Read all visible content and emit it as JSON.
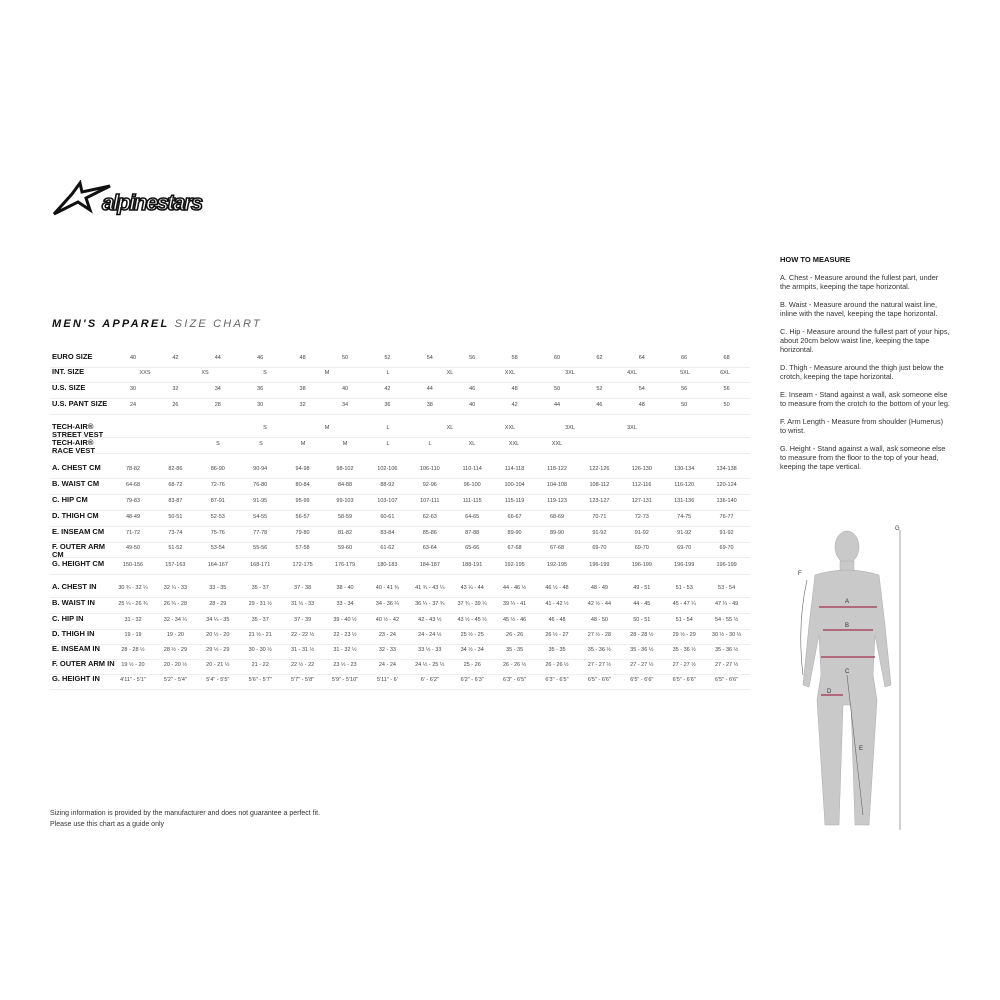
{
  "brand": "alpinestars",
  "title": {
    "bold": "MEN'S APPAREL",
    "light": "SIZE CHART"
  },
  "size_rows": [
    {
      "label": "EURO SIZE",
      "cells": [
        "40",
        "42",
        "44",
        "46",
        "48",
        "50",
        "52",
        "54",
        "56",
        "58",
        "60",
        "62",
        "64",
        "66",
        "68"
      ]
    },
    {
      "label": "INT. SIZE",
      "cells": [
        "XXS",
        "XS",
        "S",
        "M",
        "L",
        "XL",
        "XXL",
        "3XL",
        "4XL",
        "5XL",
        "6XL"
      ]
    },
    {
      "label": "U.S. SIZE",
      "cells": [
        "30",
        "32",
        "34",
        "36",
        "38",
        "40",
        "42",
        "44",
        "46",
        "48",
        "50",
        "52",
        "54",
        "56",
        "56"
      ]
    },
    {
      "label": "U.S. PANT SIZE",
      "cells": [
        "24",
        "26",
        "28",
        "30",
        "32",
        "34",
        "36",
        "38",
        "40",
        "42",
        "44",
        "46",
        "48",
        "50",
        "50"
      ]
    },
    {
      "label": "TECH-AIR® STREET VEST",
      "cells": [
        "S",
        "M",
        "L",
        "XL",
        "XXL",
        "3XL",
        "3XL"
      ]
    },
    {
      "label": "TECH-AIR® RACE VEST",
      "cells": [
        "S",
        "S",
        "M",
        "M",
        "L",
        "L",
        "XL",
        "XXL",
        "XXL"
      ]
    }
  ],
  "cm_rows": [
    {
      "label": "A. CHEST CM",
      "cells": [
        "78-82",
        "82-86",
        "86-90",
        "90-94",
        "94-98",
        "98-102",
        "102-106",
        "106-110",
        "110-114",
        "114-118",
        "118-122",
        "122-126",
        "126-130",
        "130-134",
        "134-138"
      ]
    },
    {
      "label": "B. WAIST CM",
      "cells": [
        "64-68",
        "68-72",
        "72-76",
        "76-80",
        "80-84",
        "84-88",
        "88-92",
        "92-96",
        "96-100",
        "100-104",
        "104-108",
        "108-112",
        "112-116",
        "116-120",
        "120-124"
      ]
    },
    {
      "label": "C. HIP CM",
      "cells": [
        "79-83",
        "83-87",
        "87-91",
        "91-95",
        "95-99",
        "99-103",
        "103-107",
        "107-111",
        "111-115",
        "115-119",
        "119-123",
        "123-127",
        "127-131",
        "131-136",
        "136-140"
      ]
    },
    {
      "label": "D. THIGH CM",
      "cells": [
        "48-49",
        "50-51",
        "52-53",
        "54-55",
        "56-57",
        "58-59",
        "60-61",
        "62-63",
        "64-65",
        "66-67",
        "68-69",
        "70-71",
        "72-73",
        "74-75",
        "76-77"
      ]
    },
    {
      "label": "E. INSEAM CM",
      "cells": [
        "71-72",
        "73-74",
        "75-76",
        "77-78",
        "79-80",
        "81-82",
        "83-84",
        "85-86",
        "87-88",
        "89-90",
        "89-90",
        "91-92",
        "91-92",
        "91-92",
        "91-92"
      ]
    },
    {
      "label": "F. OUTER ARM CM",
      "cells": [
        "49-50",
        "51-52",
        "53-54",
        "55-56",
        "57-58",
        "59-60",
        "61-62",
        "63-64",
        "65-66",
        "67-68",
        "67-68",
        "69-70",
        "69-70",
        "69-70",
        "69-70"
      ]
    },
    {
      "label": "G. HEIGHT CM",
      "cells": [
        "150-156",
        "157-163",
        "164-167",
        "168-171",
        "172-175",
        "176-179",
        "180-183",
        "184-187",
        "188-191",
        "192-195",
        "192-195",
        "196-199",
        "196-199",
        "196-199",
        "196-199"
      ]
    }
  ],
  "in_rows": [
    {
      "label": "A. CHEST IN",
      "cells": [
        "30 ¾ - 32 ¼",
        "32 ¼ - 33",
        "33 - 35",
        "35 - 37",
        "37 - 38",
        "38 - 40",
        "40 - 41 ¾",
        "41 ¾ - 43 ¼",
        "43 ¼ - 44",
        "44 - 46 ½",
        "46 ½ - 48",
        "48 - 49",
        "49 - 51",
        "51 - 53",
        "53 - 54"
      ]
    },
    {
      "label": "B. WAIST IN",
      "cells": [
        "25 ¼ - 26 ¾",
        "26 ¾ - 28",
        "28 - 29",
        "29 - 31 ½",
        "31 ½ - 33",
        "33 - 34",
        "34 - 36 ¼",
        "36 ¼ - 37 ¾",
        "37 ¾ - 39 ¼",
        "39 ¼ - 41",
        "41 - 42 ½",
        "42 ½ - 44",
        "44 - 45",
        "45 - 47 ¼",
        "47 ¼ - 49"
      ]
    },
    {
      "label": "C. HIP IN",
      "cells": [
        "31 - 32",
        "32 - 34 ¼",
        "34 ¼ - 35",
        "35 - 37",
        "37 - 39",
        "39 - 40 ½",
        "40 ½ - 42",
        "42 - 43 ½",
        "43 ½ - 45 ½",
        "45 ½ - 46",
        "46 - 48",
        "48 - 50",
        "50 - 51",
        "51 - 54",
        "54 - 55 ½"
      ]
    },
    {
      "label": "D. THIGH IN",
      "cells": [
        "19 - 19",
        "19 - 20",
        "20 ½ - 20",
        "21 ½ - 21",
        "22 - 22 ½",
        "22 - 23 ½",
        "23 - 24",
        "24 - 24 ½",
        "25 ½ - 25",
        "26 - 26",
        "26 ½ - 27",
        "27 ½ - 28",
        "28 - 28 ½",
        "29 ½ - 29",
        "30 ½ - 30 ½"
      ]
    },
    {
      "label": "E. INSEAM IN",
      "cells": [
        "28 - 28 ½",
        "28 ½ - 29",
        "29 ½ - 29",
        "30 - 30 ½",
        "31 - 31 ½",
        "31 - 32 ½",
        "32 - 33",
        "33 ½ - 33",
        "34 ½ - 34",
        "35 - 35",
        "35 - 35",
        "35 - 36 ½",
        "35 - 36 ½",
        "35 - 36 ½",
        "35 - 36 ½"
      ]
    },
    {
      "label": "F. OUTER ARM IN",
      "cells": [
        "19 ½ - 20",
        "20 - 20 ½",
        "20 - 21 ½",
        "21 - 22",
        "22 ½ - 22",
        "23 ½ - 23",
        "24 - 24",
        "24 ½ - 25 ½",
        "25 - 26",
        "26 - 26 ½",
        "26 - 26 ½",
        "27 - 27 ½",
        "27 - 27 ½",
        "27 - 27 ½",
        "27 - 27 ½"
      ]
    },
    {
      "label": "G. HEIGHT IN",
      "cells": [
        "4'11\" - 5'1\"",
        "5'2\" - 5'4\"",
        "5'4\" - 5'5\"",
        "5'6\" - 5'7\"",
        "5'7\" - 5'8\"",
        "5'9\" - 5'10\"",
        "5'11\" - 6'",
        "6' - 6'2\"",
        "6'2\" - 6'3\"",
        "6'3\" - 6'5\"",
        "6'3\" - 6'5\"",
        "6'5\" - 6'6\"",
        "6'5\" - 6'6\"",
        "6'5\" - 6'6\"",
        "6'5\" - 6'6\""
      ]
    }
  ],
  "how_to_measure": {
    "heading": "HOW TO MEASURE",
    "items": [
      "A. Chest - Measure around the fullest part, under the armpits, keeping the tape horizontal.",
      "B. Waist - Measure around the natural waist line, inline with the navel, keeping the tape horizontal.",
      "C. Hip - Measure around the fullest part of your hips, about 20cm below waist line, keeping the tape horizontal.",
      "D. Thigh - Measure around the thigh just below the crotch, keeping the tape horizontal.",
      "E. Inseam - Stand against a wall, ask someone else to measure from the crotch to the bottom of your leg.",
      "F. Arm Length - Measure from shoulder (Humerus) to wrist.",
      "G. Height - Stand against a wall, ask someone else to measure from the floor to the top of your head, keeping the tape vertical."
    ]
  },
  "figure_labels": [
    "A",
    "B",
    "C",
    "D",
    "E",
    "F",
    "G"
  ],
  "disclaimer": [
    "Sizing information is provided by the manufacturer and does not guarantee a perfect fit.",
    "Please use this chart as a guide only"
  ],
  "colors": {
    "text": "#222222",
    "measure_line": "#a0304a",
    "figure": "#c8c8c8"
  }
}
